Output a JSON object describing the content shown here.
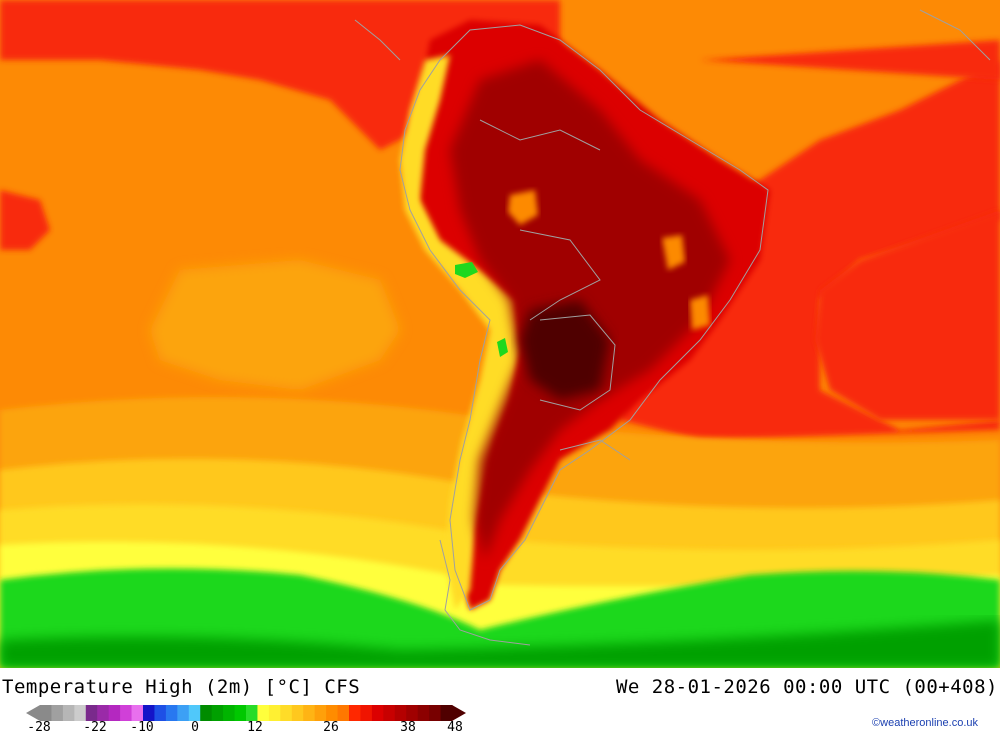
{
  "title": "Temperature High (2m) [°C] CFS",
  "datetime": "We 28-01-2026 00:00 UTC (00+408)",
  "credit": "©weatheronline.co.uk",
  "legend": {
    "tick_labels": [
      "-28",
      "-22",
      "-10",
      "0",
      "12",
      "26",
      "38",
      "48"
    ],
    "min": -28,
    "max": 48,
    "colors": [
      "#8a8a8a",
      "#a0a0a0",
      "#b6b6b6",
      "#cccccc",
      "#7a2a8c",
      "#9a2aa8",
      "#b428c0",
      "#d040d8",
      "#e870ee",
      "#1414c8",
      "#1e50e6",
      "#2878f0",
      "#3ca0f5",
      "#50c8fa",
      "#008c00",
      "#00a000",
      "#00b400",
      "#00c800",
      "#28dc28",
      "#ffff3c",
      "#fff032",
      "#ffdc28",
      "#ffc81e",
      "#ffb414",
      "#ffa00a",
      "#ff8c00",
      "#ff7800",
      "#ff2800",
      "#f01400",
      "#dc0000",
      "#c80000",
      "#b40000",
      "#a00000",
      "#8c0000",
      "#780000",
      "#500000"
    ]
  },
  "map": {
    "colors": {
      "ocean_warm": "#fd8a05",
      "ocean_mid": "#fca40f",
      "hot_red": "#f82c08",
      "deep_red": "#c80a0a",
      "dark_red": "#8c0000",
      "darkest": "#500000",
      "yellow": "#ffdc28",
      "light_yellow": "#ffff3c",
      "green": "#1ed81e",
      "dark_green": "#00a000",
      "border": "#a0a0a0"
    }
  }
}
